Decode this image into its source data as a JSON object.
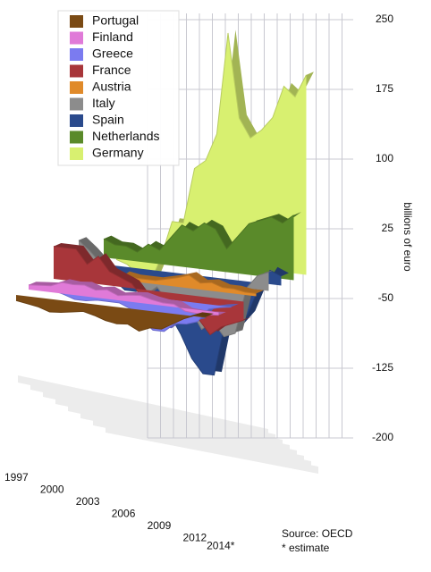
{
  "chart_data": {
    "type": "ribbon3d",
    "categories": [
      "1997",
      null,
      null,
      "2000",
      null,
      null,
      "2003",
      null,
      null,
      "2006",
      null,
      null,
      "2009",
      null,
      null,
      "2012",
      null,
      "2014*"
    ],
    "ylim": [
      -200,
      250
    ],
    "yticks": [
      250,
      175,
      100,
      25,
      -50,
      -125,
      -200
    ],
    "y_label": "billions of euro",
    "source": "Source: OECD",
    "note": "* estimate",
    "series": [
      {
        "name": "Portugal",
        "color": "#7a4a14",
        "values": [
          -6,
          -8,
          -10,
          -14,
          -13,
          -11,
          -9,
          -12,
          -16,
          -18,
          -17,
          -23,
          -18,
          -18,
          -11,
          -4,
          1,
          1
        ]
      },
      {
        "name": "Finland",
        "color": "#e07ad8",
        "values": [
          5,
          6,
          7,
          12,
          11,
          12,
          8,
          10,
          5,
          7,
          8,
          5,
          3,
          3,
          -3,
          -4,
          -4,
          -3
        ]
      },
      {
        "name": "Greece",
        "color": "#7b7bf0",
        "values": [
          -5,
          -5,
          -8,
          -12,
          -12,
          -10,
          -10,
          -10,
          -15,
          -25,
          -35,
          -35,
          -25,
          -24,
          -20,
          -5,
          -2,
          0
        ]
      },
      {
        "name": "France",
        "color": "#a8363a",
        "values": [
          35,
          35,
          35,
          20,
          30,
          15,
          10,
          5,
          -10,
          -15,
          -20,
          -30,
          -20,
          -25,
          -40,
          -30,
          -25,
          -20
        ]
      },
      {
        "name": "Austria",
        "color": "#e08a2a",
        "values": [
          -5,
          -5,
          -3,
          -6,
          -4,
          6,
          4,
          4,
          4,
          7,
          10,
          14,
          7,
          9,
          5,
          5,
          3,
          3
        ]
      },
      {
        "name": "Italy",
        "color": "#8c8c8c",
        "values": [
          30,
          20,
          8,
          -5,
          -3,
          -8,
          -20,
          -10,
          -25,
          -35,
          -30,
          -50,
          -40,
          -55,
          -50,
          0,
          15,
          20
        ]
      },
      {
        "name": "Spain",
        "color": "#2a4a8c",
        "values": [
          -2,
          -5,
          -15,
          -25,
          -25,
          -20,
          -30,
          -45,
          -65,
          -90,
          -105,
          -105,
          -45,
          -50,
          -35,
          -5,
          15,
          10
        ]
      },
      {
        "name": "Netherlands",
        "color": "#5a8a2a",
        "values": [
          20,
          15,
          15,
          10,
          20,
          15,
          30,
          45,
          40,
          50,
          45,
          25,
          40,
          55,
          60,
          65,
          60,
          70
        ]
      },
      {
        "name": "Germany",
        "color": "#d8f070",
        "values": [
          -8,
          -12,
          -22,
          -30,
          0,
          40,
          40,
          100,
          110,
          140,
          250,
          160,
          140,
          150,
          165,
          200,
          190,
          215
        ]
      }
    ]
  }
}
